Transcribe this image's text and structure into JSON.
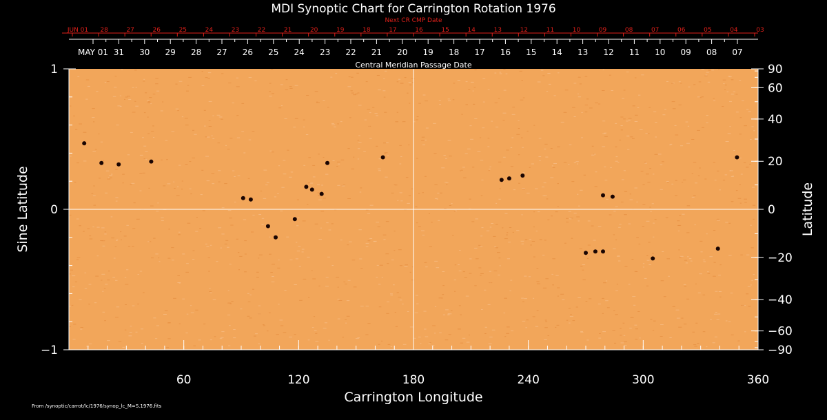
{
  "chart_data": {
    "type": "heatmap",
    "title": "MDI Synoptic Chart for Carrington Rotation 1976",
    "xlabel": "Carrington Longitude",
    "ylabel_left": "Sine Latitude",
    "ylabel_right": "Latitude",
    "xlim": [
      0,
      360
    ],
    "ylim": [
      -1,
      1
    ],
    "x_ticks": [
      60,
      120,
      180,
      240,
      300,
      360
    ],
    "y_left_ticks": [
      {
        "value": 1,
        "label": "1"
      },
      {
        "value": 0,
        "label": "0"
      },
      {
        "value": -1,
        "label": "−1"
      }
    ],
    "y_right_ticks": [
      90,
      60,
      40,
      20,
      0,
      -20,
      -40,
      -60,
      -90
    ],
    "y_right_labels": [
      "90",
      "60",
      "40",
      "20",
      "0",
      "−20",
      "−40",
      "−60",
      "−90"
    ],
    "top_axis_title": "Central Meridian Passage Date",
    "top_axis_dates": [
      "MAY 01",
      "31",
      "30",
      "29",
      "28",
      "27",
      "26",
      "25",
      "24",
      "23",
      "22",
      "21",
      "20",
      "19",
      "18",
      "17",
      "16",
      "15",
      "14",
      "13",
      "12",
      "11",
      "10",
      "09",
      "08",
      "07"
    ],
    "next_cr_title": "Next CR CMP Date",
    "next_cr_dates": [
      "JUN 01",
      "28",
      "27",
      "26",
      "25",
      "24",
      "23",
      "22",
      "21",
      "20",
      "19",
      "18",
      "17",
      "16",
      "15",
      "14",
      "13",
      "12",
      "11",
      "10",
      "09",
      "08",
      "07",
      "06",
      "05",
      "04",
      "03"
    ],
    "background_color": "#f2a65a",
    "spot_color": "#1a0502",
    "spots": [
      {
        "lon": 8,
        "sinlat": 0.47
      },
      {
        "lon": 17,
        "sinlat": 0.33
      },
      {
        "lon": 26,
        "sinlat": 0.32
      },
      {
        "lon": 43,
        "sinlat": 0.34
      },
      {
        "lon": 91,
        "sinlat": 0.08
      },
      {
        "lon": 95,
        "sinlat": 0.07
      },
      {
        "lon": 104,
        "sinlat": -0.12
      },
      {
        "lon": 108,
        "sinlat": -0.2
      },
      {
        "lon": 118,
        "sinlat": -0.07
      },
      {
        "lon": 124,
        "sinlat": 0.16
      },
      {
        "lon": 127,
        "sinlat": 0.14
      },
      {
        "lon": 132,
        "sinlat": 0.11
      },
      {
        "lon": 135,
        "sinlat": 0.33
      },
      {
        "lon": 164,
        "sinlat": 0.37
      },
      {
        "lon": 226,
        "sinlat": 0.21
      },
      {
        "lon": 230,
        "sinlat": 0.22
      },
      {
        "lon": 237,
        "sinlat": 0.24
      },
      {
        "lon": 279,
        "sinlat": 0.1
      },
      {
        "lon": 284,
        "sinlat": 0.09
      },
      {
        "lon": 270,
        "sinlat": -0.31
      },
      {
        "lon": 275,
        "sinlat": -0.3
      },
      {
        "lon": 279,
        "sinlat": -0.3
      },
      {
        "lon": 305,
        "sinlat": -0.35
      },
      {
        "lon": 339,
        "sinlat": -0.28
      },
      {
        "lon": 349,
        "sinlat": 0.37
      }
    ]
  },
  "footer_text": "From /synoptic/carrot/lc/1976/synop_lc_M=S.1976.fits"
}
